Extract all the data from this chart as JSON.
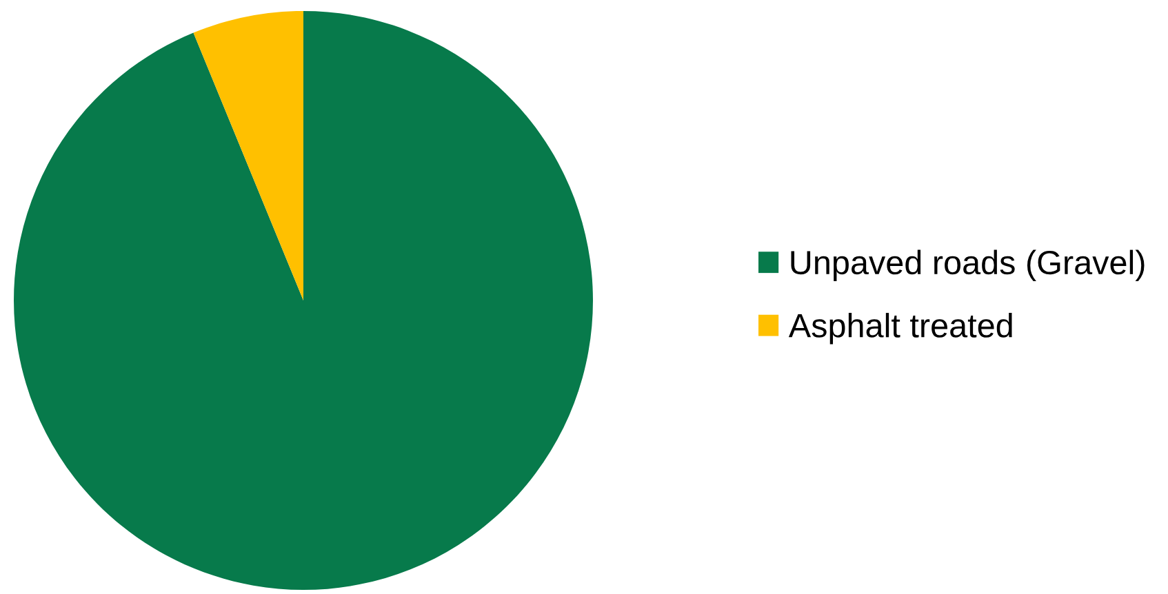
{
  "chart_data": {
    "type": "pie",
    "categories": [
      "Unpaved roads (Gravel)",
      "Asphalt treated"
    ],
    "values": [
      93.8,
      6.2
    ],
    "colors": [
      "#077a4b",
      "#ffc000"
    ],
    "legend": "right"
  }
}
